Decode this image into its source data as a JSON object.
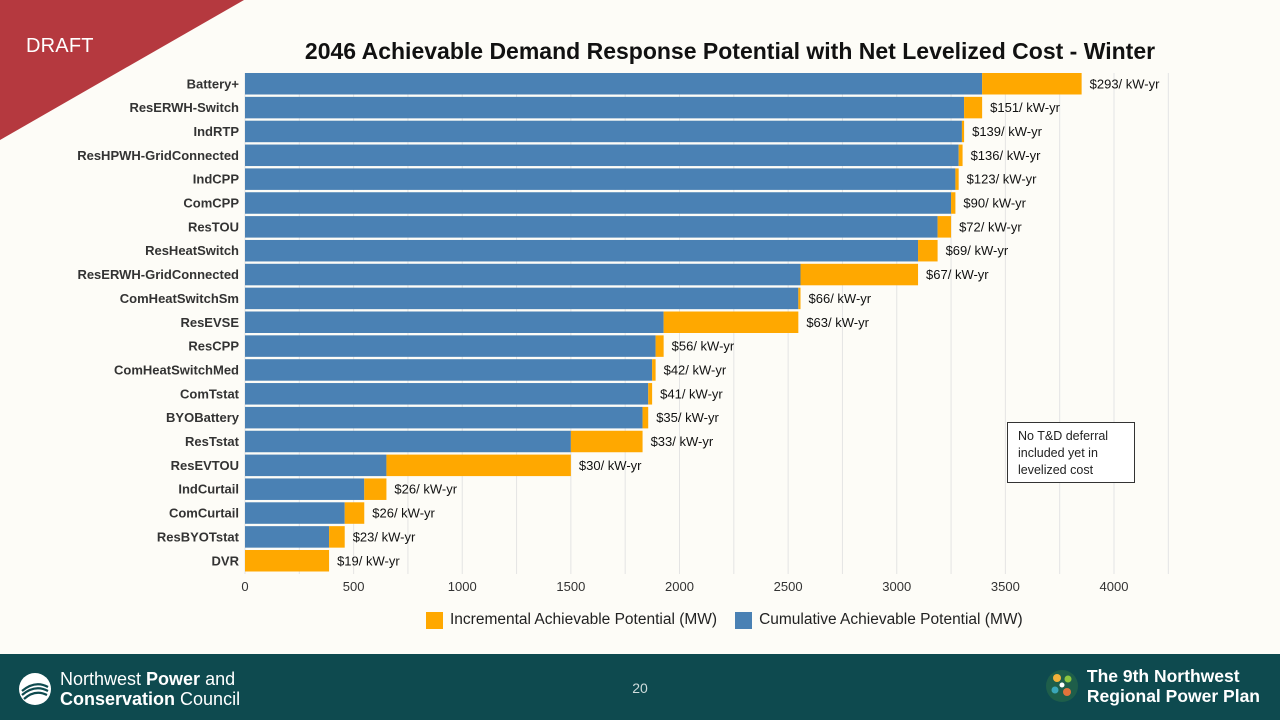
{
  "slide": {
    "draft_label": "DRAFT",
    "page_number": "20",
    "note": "No T&D deferral included yet in levelized cost",
    "footer": {
      "council_line1_regular": "Northwest ",
      "council_line1_bold": "Power",
      "council_line1_end": " and",
      "council_line2_bold": "Conservation",
      "council_line2_end": " Council",
      "plan_line1": "The 9th Northwest",
      "plan_line2": "Regional Power Plan"
    },
    "colors": {
      "draft_red": "#b5393f",
      "footer_teal": "#0e4a4f",
      "cumulative": "#4a81b4",
      "incremental": "#ffa800"
    }
  },
  "chart_data": {
    "type": "bar",
    "orientation": "horizontal",
    "stacked": true,
    "title": "2046 Achievable Demand Response Potential with Net Levelized Cost - Winter",
    "xlim": [
      0,
      4000
    ],
    "xticks": [
      0,
      500,
      1000,
      1500,
      2000,
      2500,
      3000,
      3500,
      4000
    ],
    "grid": "vertical",
    "legend_position": "bottom",
    "categories": [
      "Battery+",
      "ResERWH-Switch",
      "IndRTP",
      "ResHPWH-GridConnected",
      "IndCPP",
      "ComCPP",
      "ResTOU",
      "ResHeatSwitch",
      "ResERWH-GridConnected",
      "ComHeatSwitchSm",
      "ResEVSE",
      "ResCPP",
      "ComHeatSwitchMed",
      "ComTstat",
      "BYOBattery",
      "ResTstat",
      "ResEVTOU",
      "IndCurtail",
      "ComCurtail",
      "ResBYOTstat",
      "DVR"
    ],
    "series": [
      {
        "name": "Cumulative Achievable Potential (MW)",
        "color": "#4a81b4",
        "values": [
          3393,
          3310,
          3300,
          3285,
          3270,
          3250,
          3188,
          3098,
          2557,
          2547,
          1927,
          1890,
          1874,
          1856,
          1830,
          1500,
          651,
          549,
          459,
          387,
          0
        ]
      },
      {
        "name": "Incremental Achievable Potential (MW)",
        "color": "#ffa800",
        "values": [
          458,
          83,
          10,
          18,
          15,
          20,
          62,
          90,
          541,
          10,
          620,
          37,
          16,
          18,
          26,
          330,
          849,
          102,
          90,
          72,
          387
        ]
      }
    ],
    "data_labels": [
      "$293/ kW-yr",
      "$151/ kW-yr",
      "$139/ kW-yr",
      "$136/ kW-yr",
      "$123/ kW-yr",
      "$90/ kW-yr",
      "$72/ kW-yr",
      "$69/ kW-yr",
      "$67/ kW-yr",
      "$66/ kW-yr",
      "$63/ kW-yr",
      "$56/ kW-yr",
      "$42/ kW-yr",
      "$41/ kW-yr",
      "$35/ kW-yr",
      "$33/ kW-yr",
      "$30/ kW-yr",
      "$26/ kW-yr",
      "$26/ kW-yr",
      "$23/ kW-yr",
      "$19/ kW-yr"
    ],
    "legend": [
      "Incremental Achievable Potential (MW)",
      "Cumulative Achievable Potential (MW)"
    ]
  }
}
